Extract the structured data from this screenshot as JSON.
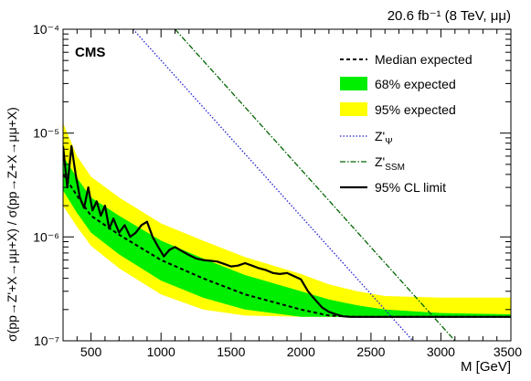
{
  "chart_data": {
    "type": "line",
    "experiment_label": "CMS",
    "lumi_label": "20.6 fb⁻¹ (8 TeV, μμ)",
    "xlabel": "M [GeV]",
    "ylabel": "σ(pp→Z'+X→μμ+X) / σ(pp→Z+X→μμ+X)",
    "xlim": [
      300,
      3500
    ],
    "ylim": [
      1e-07,
      0.0001
    ],
    "yscale": "log",
    "x_ticks": [
      500,
      1000,
      1500,
      2000,
      2500,
      3000,
      3500
    ],
    "x_tick_labels": [
      "500",
      "1000",
      "1500",
      "2000",
      "2500",
      "3000",
      "3500"
    ],
    "y_ticks": [
      1e-07,
      1e-06,
      1e-05,
      0.0001
    ],
    "y_tick_labels": [
      "10⁻⁷",
      "10⁻⁶",
      "10⁻⁵",
      "10⁻⁴"
    ],
    "grid": false,
    "legend_position": "top-right",
    "legend": [
      {
        "key": "median",
        "label": "Median expected"
      },
      {
        "key": "band68",
        "label": "68% expected"
      },
      {
        "key": "band95",
        "label": "95% expected"
      },
      {
        "key": "zpsi",
        "label": "Z'ψ"
      },
      {
        "key": "zssm",
        "label": "Z'SSM"
      },
      {
        "key": "observed",
        "label": "95% CL limit"
      }
    ],
    "colors": {
      "band68": "#00ee00",
      "band95": "#ffff00",
      "median": "#000000",
      "observed": "#000000",
      "zpsi": "#1f1fd0",
      "zssm": "#006400"
    },
    "series": [
      {
        "name": "Median expected",
        "key": "median",
        "x": [
          300,
          400,
          500,
          700,
          1000,
          1300,
          1600,
          2000,
          2200,
          2400,
          3500
        ],
        "y": [
          4e-06,
          2.5e-06,
          1.6e-06,
          1.05e-06,
          6e-07,
          4e-07,
          2.8e-07,
          2e-07,
          1.75e-07,
          1.7e-07,
          1.7e-07
        ]
      },
      {
        "name": "68% expected",
        "key": "band68",
        "x": [
          300,
          400,
          500,
          700,
          1000,
          1300,
          1600,
          2000,
          2200,
          2400,
          2600,
          3000,
          3500
        ],
        "lower": [
          2.8e-06,
          1.7e-06,
          1.1e-06,
          6.8e-07,
          3.8e-07,
          2.6e-07,
          2e-07,
          1.7e-07,
          1.7e-07,
          1.7e-07,
          1.7e-07,
          1.7e-07,
          1.7e-07
        ],
        "upper": [
          6e-06,
          3.7e-06,
          2.4e-06,
          1.6e-06,
          9.2e-07,
          6.2e-07,
          4.3e-07,
          3e-07,
          2.5e-07,
          2.2e-07,
          2e-07,
          1.85e-07,
          1.8e-07
        ]
      },
      {
        "name": "95% expected",
        "key": "band95",
        "x": [
          300,
          400,
          500,
          700,
          1000,
          1300,
          1600,
          2000,
          2200,
          2400,
          2600,
          3000,
          3500
        ],
        "lower": [
          2e-06,
          1.25e-06,
          8.2e-07,
          5e-07,
          2.8e-07,
          2e-07,
          1.75e-07,
          1.7e-07,
          1.7e-07,
          1.7e-07,
          1.7e-07,
          1.7e-07,
          1.7e-07
        ],
        "upper": [
          1.25e-05,
          6e-06,
          3.8e-06,
          2.4e-06,
          1.35e-06,
          9.2e-07,
          6.4e-07,
          4.4e-07,
          3.5e-07,
          3e-07,
          2.7e-07,
          2.6e-07,
          2.6e-07
        ]
      },
      {
        "name": "Z'ψ",
        "key": "zpsi",
        "x": [
          800,
          2800
        ],
        "y": [
          0.0001,
          1e-07
        ]
      },
      {
        "name": "Z'SSM",
        "key": "zssm",
        "x": [
          1100,
          3100
        ],
        "y": [
          0.0001,
          1e-07
        ]
      },
      {
        "name": "95% CL limit",
        "key": "observed",
        "x": [
          300,
          330,
          360,
          390,
          420,
          450,
          480,
          510,
          540,
          570,
          600,
          630,
          660,
          700,
          740,
          780,
          820,
          860,
          900,
          940,
          980,
          1020,
          1060,
          1100,
          1150,
          1200,
          1250,
          1300,
          1350,
          1400,
          1450,
          1500,
          1550,
          1600,
          1650,
          1700,
          1750,
          1800,
          1850,
          1900,
          1950,
          2000,
          2050,
          2100,
          2150,
          2200,
          2250,
          2300,
          2350,
          2400,
          2450,
          2500,
          2550,
          2600,
          2700,
          2800,
          3000,
          3200,
          3500
        ],
        "y": [
          7.5e-06,
          3e-06,
          7.5e-06,
          4e-06,
          2.4e-06,
          1.9e-06,
          3e-06,
          1.8e-06,
          2.2e-06,
          1.6e-06,
          2e-06,
          1.2e-06,
          1.5e-06,
          1.1e-06,
          1.3e-06,
          1e-06,
          1.1e-06,
          1.3e-06,
          1.4e-06,
          1e-06,
          8e-07,
          6.5e-07,
          7.5e-07,
          8e-07,
          7.3e-07,
          6.7e-07,
          6.2e-07,
          6e-07,
          5.9e-07,
          5.8e-07,
          5.5e-07,
          5.2e-07,
          5.3e-07,
          5.6e-07,
          5.3e-07,
          5e-07,
          4.8e-07,
          4.5e-07,
          4.4e-07,
          4.5e-07,
          4.2e-07,
          3.9e-07,
          3e-07,
          2.5e-07,
          2.1e-07,
          1.9e-07,
          1.8e-07,
          1.72e-07,
          1.7e-07,
          1.7e-07,
          1.7e-07,
          1.7e-07,
          1.7e-07,
          1.7e-07,
          1.7e-07,
          1.7e-07,
          1.7e-07,
          1.7e-07,
          1.7e-07
        ]
      }
    ]
  }
}
